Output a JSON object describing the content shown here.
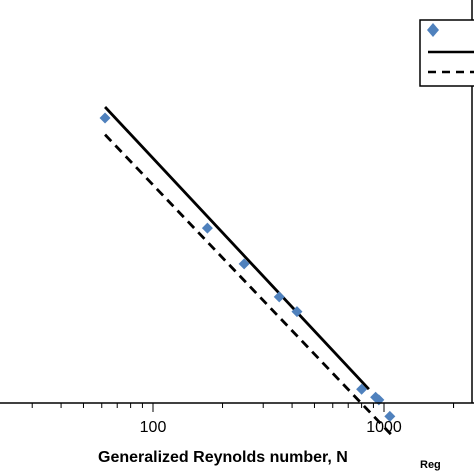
{
  "chart_data": {
    "type": "scatter",
    "x_scale": "log",
    "y_scale": "log",
    "xlim": [
      30,
      3000
    ],
    "ylim": [
      0.0035,
      0.12
    ],
    "xlabel": "Generalized Reynolds number, N",
    "xlabel_subscript": "Reg",
    "x_tick_labels": [
      "100",
      "1000"
    ],
    "x_ticks": [
      100,
      1000
    ],
    "legend_position": "top-right",
    "series": [
      {
        "type": "scatter",
        "marker": "diamond",
        "color": "#4f81bd",
        "x": [
          62,
          172,
          248,
          352,
          420,
          800,
          920,
          950,
          1060
        ],
        "y": [
          0.0583,
          0.026,
          0.02,
          0.0157,
          0.0141,
          0.00798,
          0.00752,
          0.00738,
          0.00654
        ]
      },
      {
        "type": "line",
        "style": "solid",
        "color": "#000000",
        "x": [
          62,
          860
        ],
        "y": [
          0.0632,
          0.00798
        ]
      },
      {
        "type": "line",
        "style": "dashed",
        "color": "#000000",
        "x": [
          62,
          1070
        ],
        "y": [
          0.0516,
          0.00574
        ]
      }
    ]
  }
}
